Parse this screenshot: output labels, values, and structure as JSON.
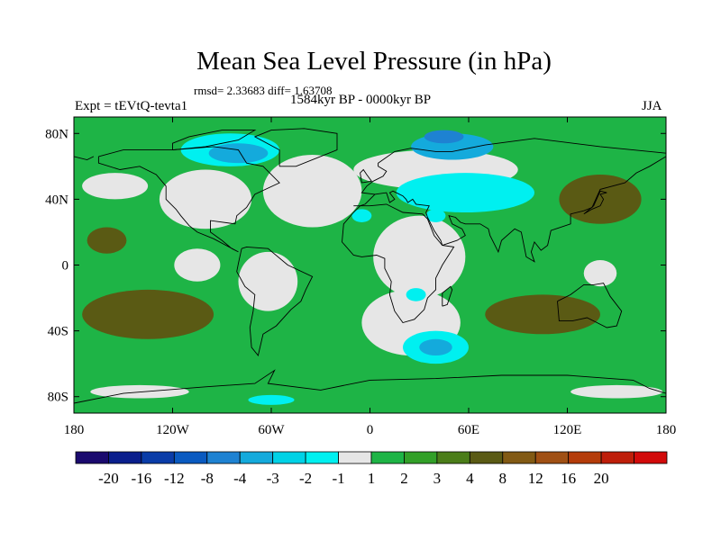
{
  "chart_data": {
    "type": "heatmap",
    "title": "Mean Sea Level Pressure (in hPa)",
    "stats": "rmsd= 2.33683 diff= 1.63708",
    "experiment": "Expt = tEVtQ-tevta1",
    "period": "1584kyr BP - 0000kyr BP",
    "season": "JJA",
    "x_axis": {
      "range": [
        -180,
        180
      ],
      "ticks": [
        {
          "value": -180,
          "label": "180"
        },
        {
          "value": -120,
          "label": "120W"
        },
        {
          "value": -60,
          "label": "60W"
        },
        {
          "value": 0,
          "label": "0"
        },
        {
          "value": 60,
          "label": "60E"
        },
        {
          "value": 120,
          "label": "120E"
        },
        {
          "value": 180,
          "label": "180"
        }
      ]
    },
    "y_axis": {
      "range": [
        -90,
        90
      ],
      "ticks": [
        {
          "value": 80,
          "label": "80N"
        },
        {
          "value": 40,
          "label": "40N"
        },
        {
          "value": 0,
          "label": "0"
        },
        {
          "value": -40,
          "label": "40S"
        },
        {
          "value": -80,
          "label": "80S"
        }
      ]
    },
    "colorbar": {
      "colors": [
        "#1a0a6e",
        "#0a1e8c",
        "#0a3ca8",
        "#0a5ac0",
        "#1e82d2",
        "#14aadc",
        "#00d2e6",
        "#00f0f0",
        "#e6e6e6",
        "#1eb446",
        "#32a028",
        "#4b7d19",
        "#5a5a14",
        "#825a14",
        "#a05014",
        "#b43c0a",
        "#be1e0a",
        "#d20a0a"
      ],
      "labels": [
        "-20",
        "-16",
        "-12",
        "-8",
        "-4",
        "-3",
        "-2",
        "-1",
        "1",
        "2",
        "3",
        "4",
        "8",
        "12",
        "16",
        "20"
      ]
    },
    "fields": [
      {
        "level": "light-grey (-1 to 1)",
        "color": "#e6e6e6",
        "regions": [
          {
            "name": "North America",
            "lon": -100,
            "lat": 40,
            "rlon": 28,
            "rlat": 18
          },
          {
            "name": "North Atlantic",
            "lon": -35,
            "lat": 45,
            "rlon": 30,
            "rlat": 22
          },
          {
            "name": "Eurasia band",
            "lon": 40,
            "lat": 58,
            "rlon": 50,
            "rlat": 12
          },
          {
            "name": "Africa",
            "lon": 30,
            "lat": 5,
            "rlon": 28,
            "rlat": 25
          },
          {
            "name": "South Atlantic",
            "lon": 25,
            "lat": -35,
            "rlon": 30,
            "rlat": 20
          },
          {
            "name": "Pacific tongue",
            "lon": -105,
            "lat": 0,
            "rlon": 14,
            "rlat": 10
          },
          {
            "name": "South America",
            "lon": -62,
            "lat": -10,
            "rlon": 18,
            "rlat": 18
          },
          {
            "name": "NE Pacific",
            "lon": -155,
            "lat": 48,
            "rlon": 20,
            "rlat": 8
          },
          {
            "name": "Australia north",
            "lon": 140,
            "lat": -5,
            "rlon": 10,
            "rlat": 8
          },
          {
            "name": "Antarctic coast",
            "lon": -140,
            "lat": -77,
            "rlon": 30,
            "rlat": 4
          },
          {
            "name": "Antarctic coast east",
            "lon": 150,
            "lat": -77,
            "rlon": 28,
            "rlat": 4
          }
        ]
      },
      {
        "level": "cyan (-2 to -1)",
        "color": "#00f0f0",
        "regions": [
          {
            "name": "Middle East",
            "lon": 58,
            "lat": 44,
            "rlon": 42,
            "rlat": 12
          },
          {
            "name": "Hudson",
            "lon": -85,
            "lat": 70,
            "rlon": 30,
            "rlat": 10
          },
          {
            "name": "Southern Ocean",
            "lon": 40,
            "lat": -50,
            "rlon": 20,
            "rlat": 10
          },
          {
            "name": "Madagascar",
            "lon": 28,
            "lat": -18,
            "rlon": 6,
            "rlat": 4
          },
          {
            "name": "Mid Atlantic",
            "lon": -5,
            "lat": 30,
            "rlon": 6,
            "rlat": 4
          },
          {
            "name": "Ross",
            "lon": -60,
            "lat": -82,
            "rlon": 14,
            "rlat": 3
          },
          {
            "name": "Arabian",
            "lon": 40,
            "lat": 30,
            "rlon": 6,
            "rlat": 4
          }
        ]
      },
      {
        "level": "sky-blue (-3 to -2)",
        "color": "#14aadc",
        "regions": [
          {
            "name": "Siberia",
            "lon": 50,
            "lat": 72,
            "rlon": 25,
            "rlat": 8
          },
          {
            "name": "Canada",
            "lon": -80,
            "lat": 68,
            "rlon": 18,
            "rlat": 6
          },
          {
            "name": "Southern Ocean core",
            "lon": 40,
            "lat": -50,
            "rlon": 10,
            "rlat": 5
          }
        ]
      },
      {
        "level": "blue (-4 to -3)",
        "color": "#1e82d2",
        "regions": [
          {
            "name": "Kara Sea",
            "lon": 45,
            "lat": 78,
            "rlon": 12,
            "rlat": 4
          }
        ]
      },
      {
        "level": "brown (4 to 8)",
        "color": "#5a5a14",
        "regions": [
          {
            "name": "South Pacific",
            "lon": -135,
            "lat": -30,
            "rlon": 40,
            "rlat": 15
          },
          {
            "name": "Indian Ocean",
            "lon": 105,
            "lat": -30,
            "rlon": 35,
            "rlat": 12
          },
          {
            "name": "North Pacific",
            "lon": 140,
            "lat": 40,
            "rlon": 25,
            "rlat": 15
          },
          {
            "name": "Equatorial Pacific",
            "lon": -160,
            "lat": 15,
            "rlon": 12,
            "rlat": 8
          }
        ]
      }
    ]
  }
}
